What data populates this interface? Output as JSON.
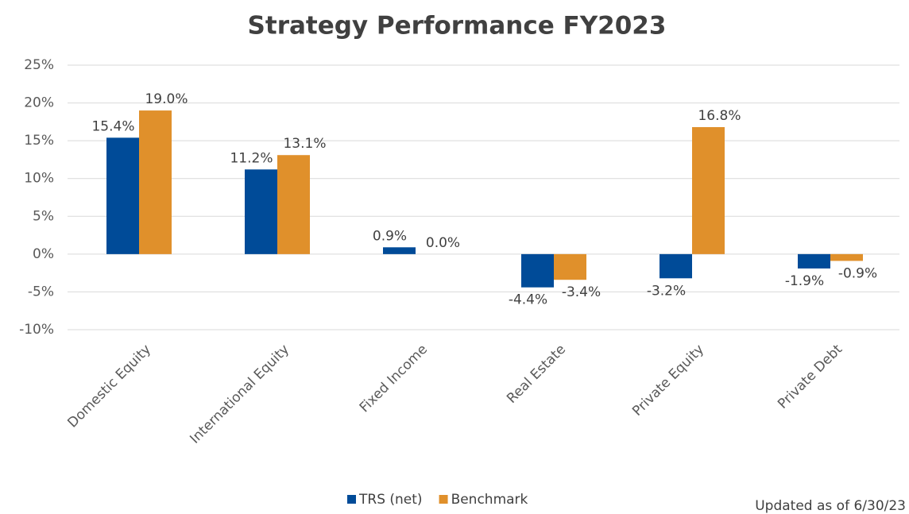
{
  "chart_data": {
    "type": "bar",
    "title": "Strategy Performance FY2023",
    "categories": [
      "Domestic Equity",
      "International Equity",
      "Fixed Income",
      "Real Estate",
      "Private Equity",
      "Private Debt"
    ],
    "series": [
      {
        "name": "TRS (net)",
        "color": "#004b98",
        "values": [
          15.4,
          11.2,
          0.9,
          -4.4,
          -3.2,
          -1.9
        ],
        "value_labels": [
          "15.4%",
          "11.2%",
          "0.9%",
          "-4.4%",
          "-3.2%",
          "-1.9%"
        ]
      },
      {
        "name": "Benchmark",
        "color": "#e0902b",
        "values": [
          19.0,
          13.1,
          0.0,
          -3.4,
          16.8,
          -0.9
        ],
        "value_labels": [
          "19.0%",
          "13.1%",
          "0.0%",
          "-3.4%",
          "16.8%",
          "-0.9%"
        ]
      }
    ],
    "ylim": [
      -10,
      25
    ],
    "yticks": [
      {
        "value": -10,
        "label": "-10%"
      },
      {
        "value": -5,
        "label": "-5%"
      },
      {
        "value": 0,
        "label": "0%"
      },
      {
        "value": 5,
        "label": "5%"
      },
      {
        "value": 10,
        "label": "10%"
      },
      {
        "value": 15,
        "label": "15%"
      },
      {
        "value": 20,
        "label": "20%"
      },
      {
        "value": 25,
        "label": "25%"
      }
    ],
    "grid": true,
    "legend": "bottom",
    "annotation": "Updated as of 6/30/23"
  }
}
